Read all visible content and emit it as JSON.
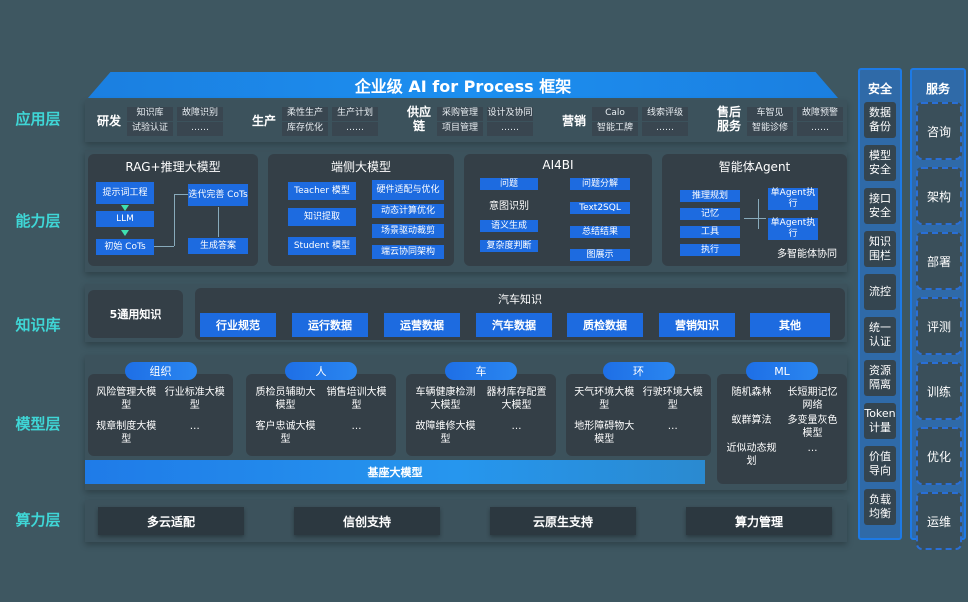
{
  "title": "企业级 AI for Process 框架",
  "rows": [
    "应用层",
    "能力层",
    "知识库",
    "模型层",
    "算力层"
  ],
  "app": [
    {
      "name": "研发",
      "items": [
        "知识库",
        "故障识别",
        "试验认证",
        "……"
      ]
    },
    {
      "name": "生产",
      "items": [
        "柔性生产",
        "生产计划",
        "库存优化",
        "……"
      ]
    },
    {
      "name": "供应链",
      "items": [
        "采购管理",
        "设计及协同",
        "项目管理",
        "……"
      ]
    },
    {
      "name": "营销",
      "items": [
        "Calo",
        "线索评级",
        "智能工牌",
        "……"
      ]
    },
    {
      "name": "售后服务",
      "items": [
        "车智见",
        "故障预警",
        "智能诊修",
        "……"
      ]
    }
  ],
  "capability": {
    "rag": {
      "title": "RAG+推理大模型",
      "boxes": [
        "提示词工程",
        "LLM",
        "初始 CoTs",
        "迭代完善 CoTs",
        "生成答案"
      ]
    },
    "edge": {
      "title": "端侧大模型",
      "boxes": [
        "Teacher 模型",
        "知识提取",
        "Student 模型",
        "硬件适配与优化",
        "动态计算优化",
        "场景驱动裁剪",
        "端云协同架构"
      ]
    },
    "ai4bi": {
      "title": "AI4BI",
      "boxes": [
        "问题",
        "意图识别",
        "语义生成",
        "复杂度判断",
        "问题分解",
        "Text2SQL",
        "总结结果",
        "图展示"
      ]
    },
    "agent": {
      "title": "智能体Agent",
      "boxes": [
        "推理规划",
        "记忆",
        "工具",
        "执行",
        "单Agent执行",
        "单Agent执行"
      ],
      "footer": "多智能体协同"
    }
  },
  "knowledge": {
    "general": "5通用知识",
    "title": "汽车知识",
    "items": [
      "行业规范",
      "运行数据",
      "运营数据",
      "汽车数据",
      "质检数据",
      "营销知识",
      "其他"
    ]
  },
  "models": [
    {
      "tag": "组织",
      "items": [
        "风险管理大模型",
        "行业标准大模型",
        "规章制度大模型",
        "…"
      ]
    },
    {
      "tag": "人",
      "items": [
        "质检员辅助大模型",
        "销售培训大模型",
        "客户忠诚大模型",
        "…"
      ]
    },
    {
      "tag": "车",
      "items": [
        "车辆健康检测大模型",
        "器材库存配置大模型",
        "故障维修大模型",
        "…"
      ]
    },
    {
      "tag": "环",
      "items": [
        "天气环境大模型",
        "行驶环境大模型",
        "地形障碍物大模型",
        "…"
      ]
    },
    {
      "tag": "ML",
      "items": [
        "随机森林",
        "长短期记忆网络",
        "蚁群算法",
        "多变量灰色模型",
        "近似动态规划",
        "…"
      ]
    }
  ],
  "base_model": "基座大模型",
  "compute": [
    "多云适配",
    "信创支持",
    "云原生支持",
    "算力管理"
  ],
  "security": {
    "title": "安全",
    "items": [
      "数据备份",
      "模型安全",
      "接口安全",
      "知识围栏",
      "流控",
      "统一认证",
      "资源隔离",
      "Token计量",
      "价值导向",
      "负载均衡"
    ]
  },
  "service": {
    "title": "服务",
    "items": [
      "咨询",
      "架构",
      "部署",
      "评测",
      "训练",
      "优化",
      "运维"
    ]
  }
}
